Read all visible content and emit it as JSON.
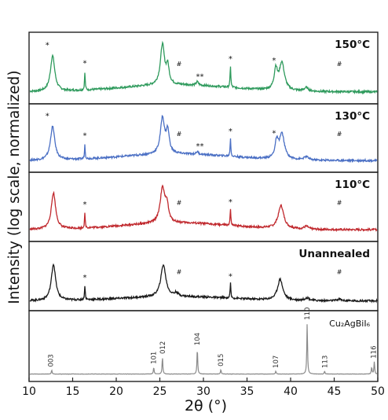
{
  "chart_data": {
    "type": "line",
    "xlabel": "2θ (°)",
    "ylabel": "Intensity (log scale, normalized)",
    "xlim": [
      10,
      50
    ],
    "xticks": [
      "10",
      "15",
      "20",
      "25",
      "30",
      "35",
      "40",
      "45",
      "50"
    ],
    "panels": [
      {
        "label": "150°C",
        "color": "#2e9a5c",
        "baseline": 0.22,
        "peaks": [
          [
            12.7,
            0.62,
            0.3
          ],
          [
            16.4,
            0.3,
            0.05
          ],
          [
            25.3,
            0.7,
            0.28
          ],
          [
            25.9,
            0.3,
            0.2
          ],
          [
            29.3,
            0.06,
            0.15
          ],
          [
            33.1,
            0.38,
            0.05
          ],
          [
            38.3,
            0.35,
            0.22
          ],
          [
            39.0,
            0.48,
            0.35
          ],
          [
            41.8,
            0.06,
            0.3
          ]
        ],
        "markers": [
          {
            "x": 12.1,
            "text": "*"
          },
          {
            "x": 16.4,
            "text": "*"
          },
          {
            "x": 27.2,
            "text": "#"
          },
          {
            "x": 29.6,
            "text": "**"
          },
          {
            "x": 33.1,
            "text": "*"
          },
          {
            "x": 38.1,
            "text": "*"
          },
          {
            "x": 45.6,
            "text": "#"
          }
        ]
      },
      {
        "label": "130°C",
        "color": "#4a6fc4",
        "baseline": 0.22,
        "peaks": [
          [
            12.7,
            0.62,
            0.3
          ],
          [
            16.4,
            0.26,
            0.05
          ],
          [
            25.3,
            0.66,
            0.28
          ],
          [
            25.9,
            0.4,
            0.22
          ],
          [
            29.3,
            0.05,
            0.15
          ],
          [
            33.1,
            0.34,
            0.05
          ],
          [
            38.4,
            0.3,
            0.22
          ],
          [
            39.0,
            0.46,
            0.35
          ],
          [
            41.8,
            0.06,
            0.3
          ]
        ],
        "markers": [
          {
            "x": 12.1,
            "text": "*"
          },
          {
            "x": 16.4,
            "text": "*"
          },
          {
            "x": 27.2,
            "text": "#"
          },
          {
            "x": 29.6,
            "text": "**"
          },
          {
            "x": 33.1,
            "text": "*"
          },
          {
            "x": 38.1,
            "text": "*"
          },
          {
            "x": 45.6,
            "text": "#"
          }
        ]
      },
      {
        "label": "110°C",
        "color": "#c0282d",
        "baseline": 0.22,
        "peaks": [
          [
            12.8,
            0.66,
            0.3
          ],
          [
            16.4,
            0.26,
            0.05
          ],
          [
            25.3,
            0.62,
            0.32
          ],
          [
            25.8,
            0.3,
            0.22
          ],
          [
            33.1,
            0.3,
            0.05
          ],
          [
            38.9,
            0.42,
            0.38
          ],
          [
            41.8,
            0.05,
            0.3
          ]
        ],
        "markers": [
          {
            "x": 16.4,
            "text": "*"
          },
          {
            "x": 27.2,
            "text": "#"
          },
          {
            "x": 33.1,
            "text": "*"
          },
          {
            "x": 45.6,
            "text": "#"
          }
        ]
      },
      {
        "label": "Unannealed",
        "color": "#1a1a1a",
        "baseline": 0.14,
        "peaks": [
          [
            12.8,
            0.66,
            0.3
          ],
          [
            16.4,
            0.26,
            0.05
          ],
          [
            25.4,
            0.58,
            0.35
          ],
          [
            26.9,
            0.06,
            0.25
          ],
          [
            33.1,
            0.28,
            0.05
          ],
          [
            38.8,
            0.38,
            0.36
          ],
          [
            41.9,
            0.05,
            0.3
          ],
          [
            45.6,
            0.03,
            0.3
          ]
        ],
        "markers": [
          {
            "x": 16.4,
            "text": "*"
          },
          {
            "x": 27.2,
            "text": "#"
          },
          {
            "x": 33.1,
            "text": "*"
          },
          {
            "x": 45.6,
            "text": "#"
          }
        ]
      },
      {
        "label": "Cu₂AgBiI₆",
        "color": "#8a8a8a",
        "baseline": 0.06,
        "peaks": [
          [
            12.6,
            0.07,
            0.05
          ],
          [
            24.3,
            0.12,
            0.05
          ],
          [
            25.3,
            0.3,
            0.05
          ],
          [
            29.3,
            0.45,
            0.05
          ],
          [
            32.0,
            0.08,
            0.05
          ],
          [
            38.3,
            0.05,
            0.05
          ],
          [
            41.9,
            0.9,
            0.05
          ],
          [
            43.9,
            0.05,
            0.05
          ],
          [
            49.3,
            0.12,
            0.05
          ],
          [
            49.6,
            0.22,
            0.05
          ]
        ],
        "markers": [
          {
            "x": 12.5,
            "text": "003"
          },
          {
            "x": 24.3,
            "text": "101"
          },
          {
            "x": 25.3,
            "text": "012"
          },
          {
            "x": 29.3,
            "text": "104"
          },
          {
            "x": 32.0,
            "text": "015"
          },
          {
            "x": 38.3,
            "text": "107"
          },
          {
            "x": 41.9,
            "text": "110"
          },
          {
            "x": 43.9,
            "text": "113"
          },
          {
            "x": 49.5,
            "text": "116"
          }
        ]
      }
    ]
  }
}
